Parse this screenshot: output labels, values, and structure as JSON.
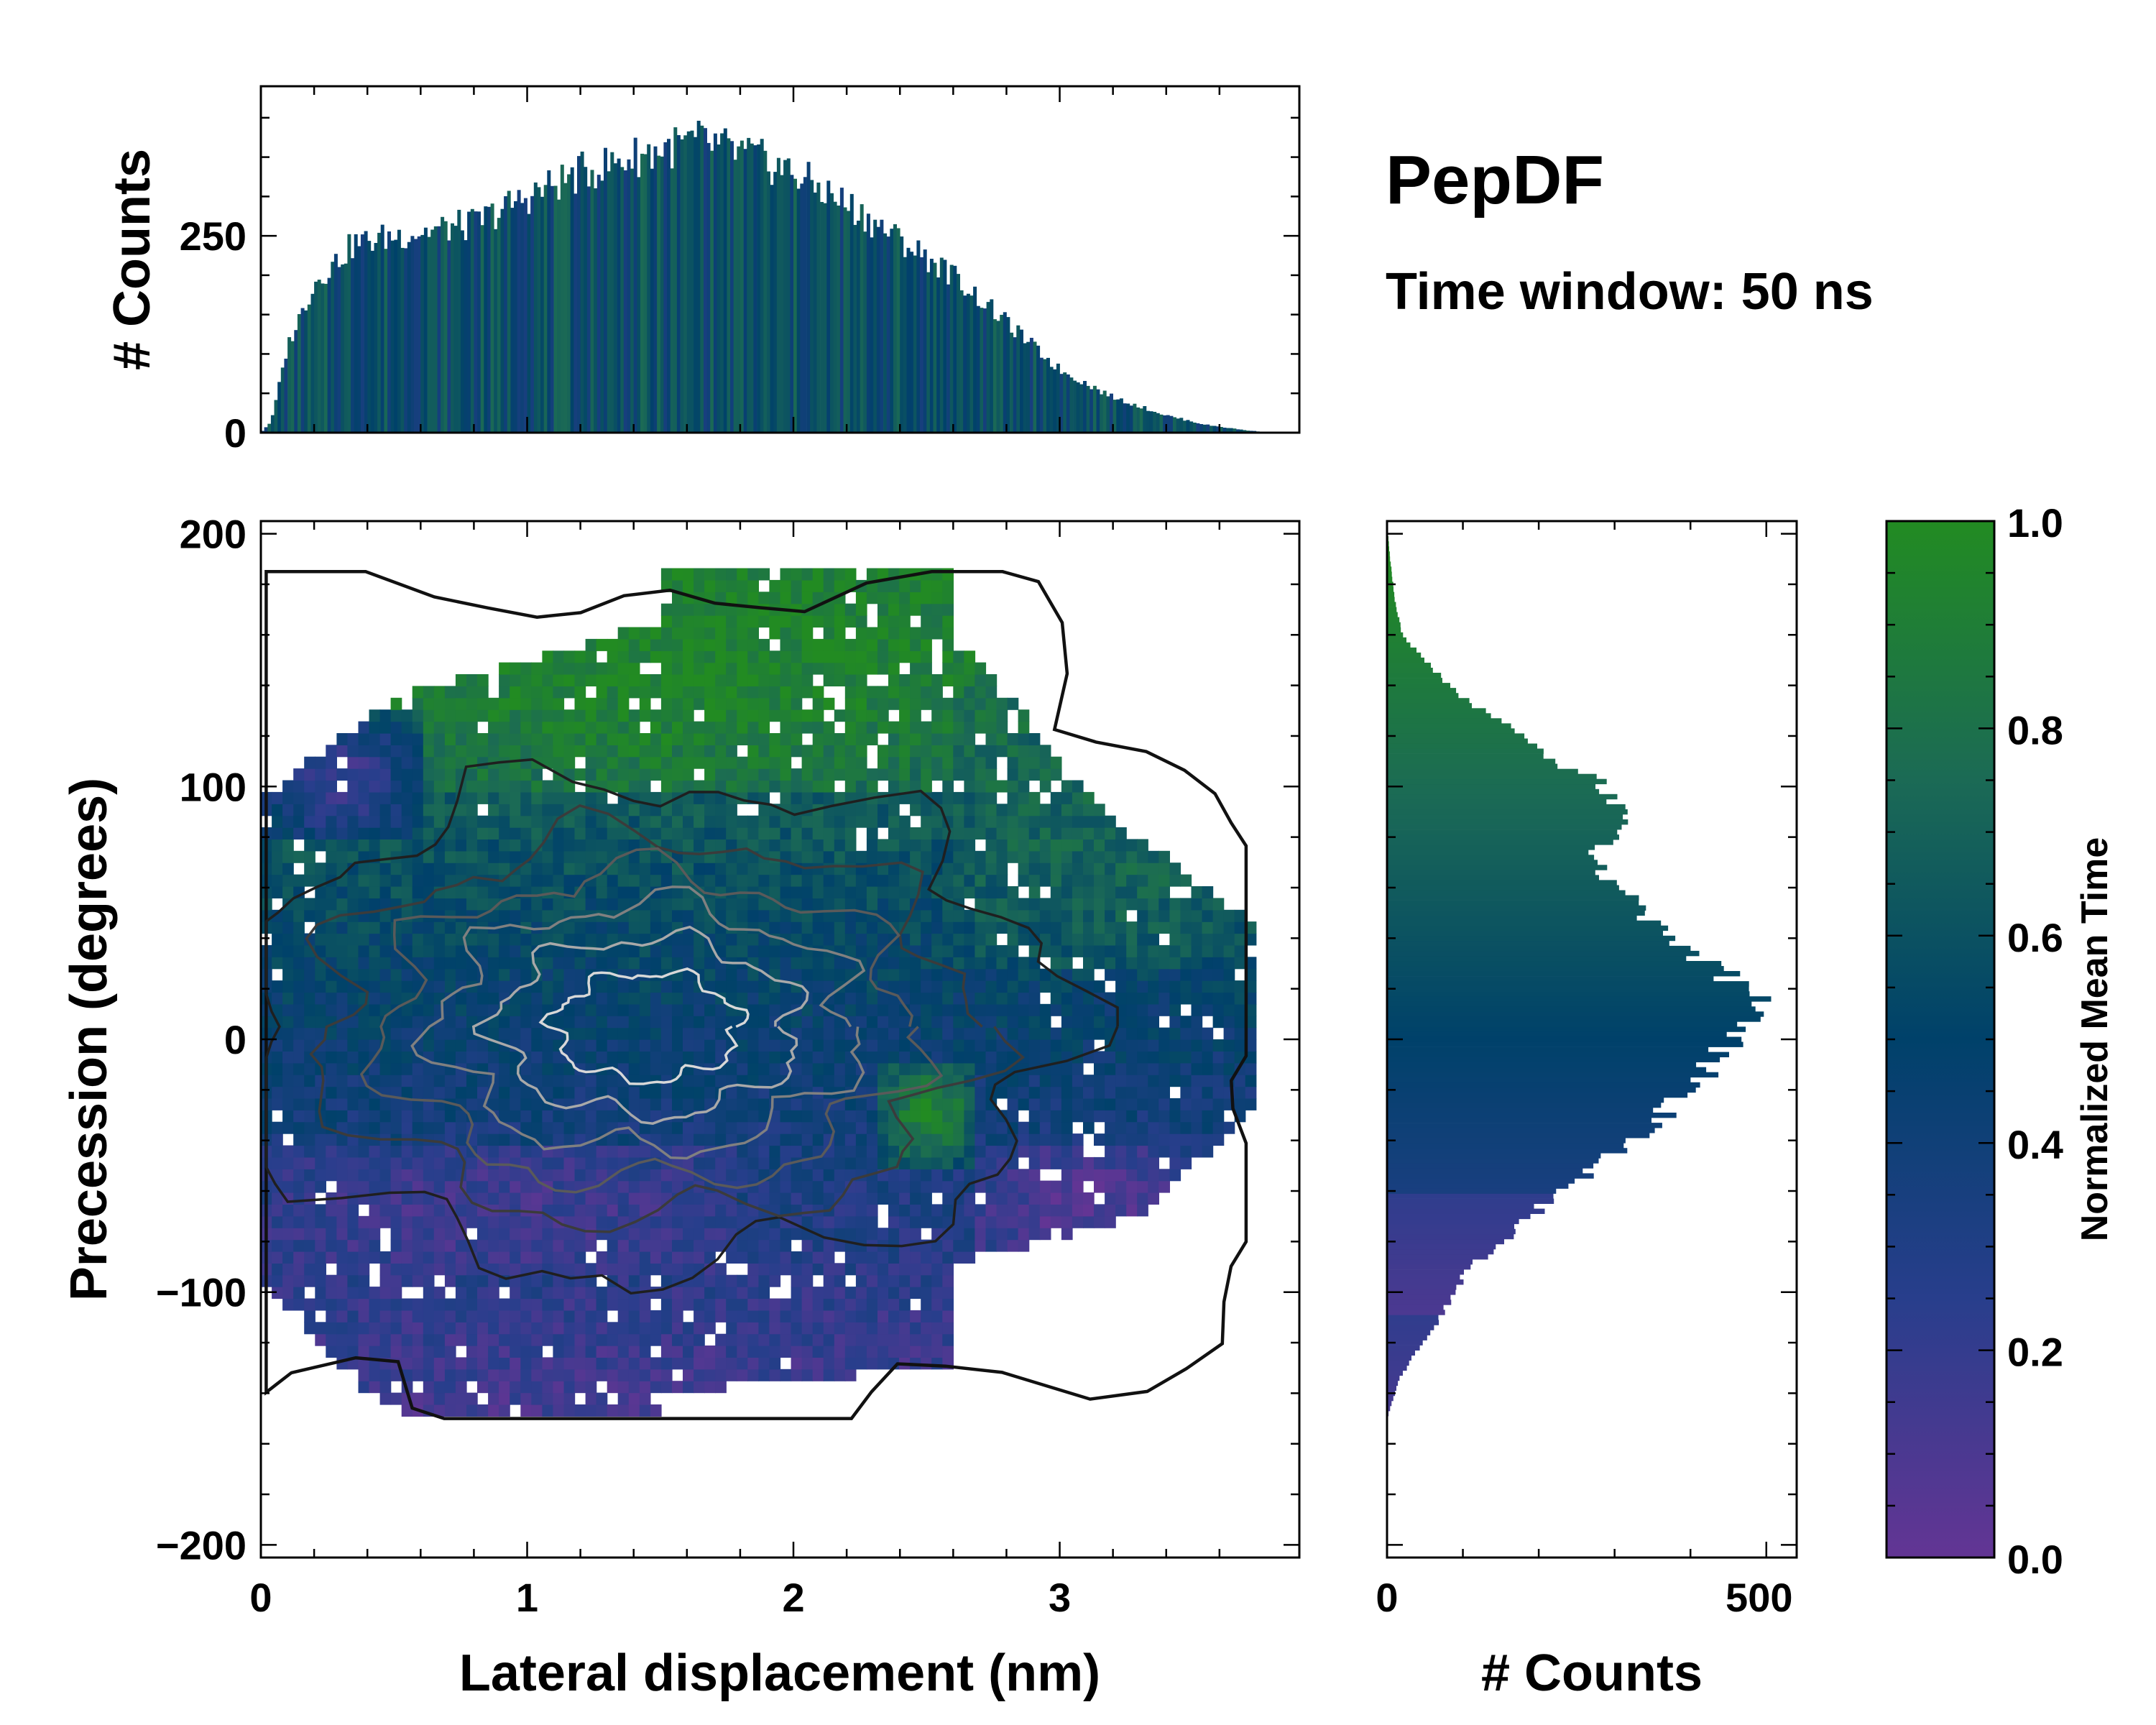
{
  "chart_data": {
    "type": "heatmap",
    "title": "PepDF",
    "subtitle": "Time window: 50 ns",
    "colors": {
      "cmap_low": "#633594",
      "cmap_mid": "#00416a",
      "cmap_high": "#228b22",
      "contour_dark": "#1a1a1a",
      "contour_light": "#d8d8d8"
    },
    "main": {
      "xlabel": "Lateral displacement (nm)",
      "ylabel": "Precession (degrees)",
      "xlim": [
        0,
        3.9
      ],
      "ylim": [
        -205,
        205
      ],
      "xticks": [
        0,
        1,
        2,
        3
      ],
      "yticks": [
        200,
        100,
        0,
        -100,
        -200
      ],
      "ytick_labels": [
        "200",
        "100",
        "0",
        "−100",
        "−200"
      ],
      "cbar_label": "Normalized Mean Time",
      "cbar_ticks": [
        1.0,
        0.8,
        0.6,
        0.4,
        0.2,
        0.0
      ],
      "cbar_tick_labels": [
        "1.0",
        "0.8",
        "0.6",
        "0.4",
        "0.2",
        "0.0"
      ],
      "density_center": {
        "x": 1.45,
        "y": 5,
        "sx": 0.85,
        "sy": 52
      },
      "color_regions": [
        {
          "name": "upper-green",
          "x": [
            0.3,
            2.9
          ],
          "y": [
            100,
            205
          ],
          "value": 0.95
        },
        {
          "name": "right-teal",
          "x": [
            2.6,
            3.8
          ],
          "y": [
            30,
            140
          ],
          "value": 0.72
        },
        {
          "name": "left-purple",
          "x": [
            0.0,
            0.6
          ],
          "y": [
            80,
            130
          ],
          "value": 0.18
        },
        {
          "name": "lower-right-purple",
          "x": [
            2.7,
            3.5
          ],
          "y": [
            -90,
            -40
          ],
          "value": 0.08
        },
        {
          "name": "lower-left-purple",
          "x": [
            0.0,
            1.8
          ],
          "y": [
            -95,
            -40
          ],
          "value": 0.15
        },
        {
          "name": "mid-green",
          "x": [
            2.3,
            2.7
          ],
          "y": [
            -50,
            -10
          ],
          "value": 0.92
        }
      ]
    },
    "top_hist": {
      "ylabel": "# Counts",
      "ylim": [
        0,
        440
      ],
      "yticks": [
        0,
        250
      ],
      "ytick_labels": [
        "0",
        "250"
      ],
      "bin_width": 0.0125,
      "x_start": 0.0,
      "envelope_x": [
        0.0,
        0.04,
        0.1,
        0.2,
        0.35,
        0.5,
        0.8,
        1.0,
        1.2,
        1.5,
        1.65,
        1.85,
        2.0,
        2.2,
        2.4,
        2.6,
        2.8,
        3.0,
        3.2,
        3.4,
        3.55,
        3.7,
        3.8,
        3.9
      ],
      "envelope_y": [
        0,
        15,
        110,
        190,
        240,
        250,
        265,
        300,
        330,
        360,
        370,
        350,
        330,
        290,
        245,
        200,
        140,
        80,
        45,
        22,
        10,
        3,
        0,
        0
      ]
    },
    "right_hist": {
      "xlabel": "# Counts",
      "xlim": [
        0,
        540
      ],
      "xticks": [
        0,
        500
      ],
      "xtick_labels": [
        "0",
        "500"
      ],
      "bin_width": 2,
      "y_start": -205,
      "envelope_y": [
        -205,
        -150,
        -135,
        -120,
        -110,
        -100,
        -90,
        -75,
        -60,
        -45,
        -30,
        -15,
        0,
        10,
        18,
        30,
        45,
        60,
        75,
        90,
        100,
        110,
        125,
        140,
        160,
        175,
        190,
        205
      ],
      "envelope_x": [
        0,
        0,
        15,
        45,
        70,
        90,
        110,
        170,
        230,
        300,
        360,
        420,
        450,
        470,
        490,
        420,
        360,
        300,
        280,
        310,
        290,
        220,
        150,
        80,
        20,
        10,
        4,
        0
      ]
    }
  }
}
